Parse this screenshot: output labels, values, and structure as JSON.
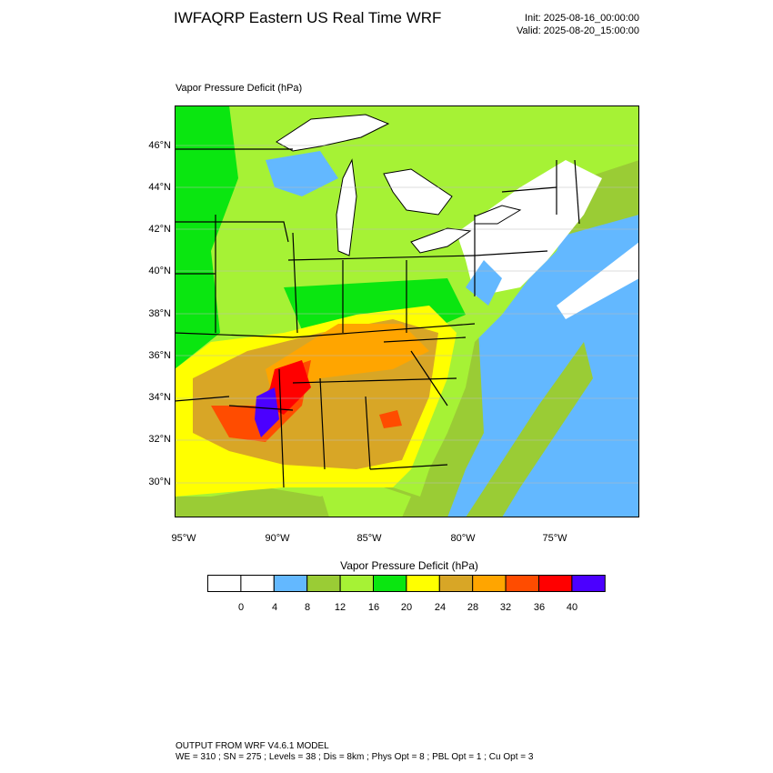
{
  "header": {
    "title": "IWFAQRP Eastern US Real Time WRF",
    "init": "Init: 2025-08-16_00:00:00",
    "valid": "Valid: 2025-08-20_15:00:00"
  },
  "map": {
    "variable_label": "Vapor Pressure Deficit   (hPa)",
    "lat_labels": [
      "46°N",
      "44°N",
      "42°N",
      "40°N",
      "38°N",
      "36°N",
      "34°N",
      "32°N",
      "30°N"
    ],
    "lon_labels": [
      "95°W",
      "90°W",
      "85°W",
      "80°W",
      "75°W"
    ],
    "colors": {
      "land_low": "#a6f235",
      "land_mid": "#0ae610",
      "water_model": "#9acc35",
      "lakes": "#ffffff",
      "border": "#000000"
    }
  },
  "colorbar": {
    "title": "Vapor Pressure Deficit  (hPa)",
    "bins": [
      {
        "color": "#ffffff"
      },
      {
        "color": "#ffffff"
      },
      {
        "color": "#63b8ff"
      },
      {
        "color": "#9acc35"
      },
      {
        "color": "#a6f235"
      },
      {
        "color": "#0ae610"
      },
      {
        "color": "#ffff00"
      },
      {
        "color": "#d8a626"
      },
      {
        "color": "#ffa500"
      },
      {
        "color": "#ff4c00"
      },
      {
        "color": "#ff0000"
      },
      {
        "color": "#4b00ff"
      }
    ],
    "tick_labels": [
      "0",
      "4",
      "8",
      "12",
      "16",
      "20",
      "24",
      "28",
      "32",
      "36",
      "40"
    ]
  },
  "footer": {
    "line1": "OUTPUT FROM WRF V4.6.1 MODEL",
    "line2": "WE = 310 ; SN = 275 ; Levels = 38 ; Dis = 8km ; Phys Opt = 8 ; PBL Opt = 1 ; Cu Opt = 3"
  }
}
